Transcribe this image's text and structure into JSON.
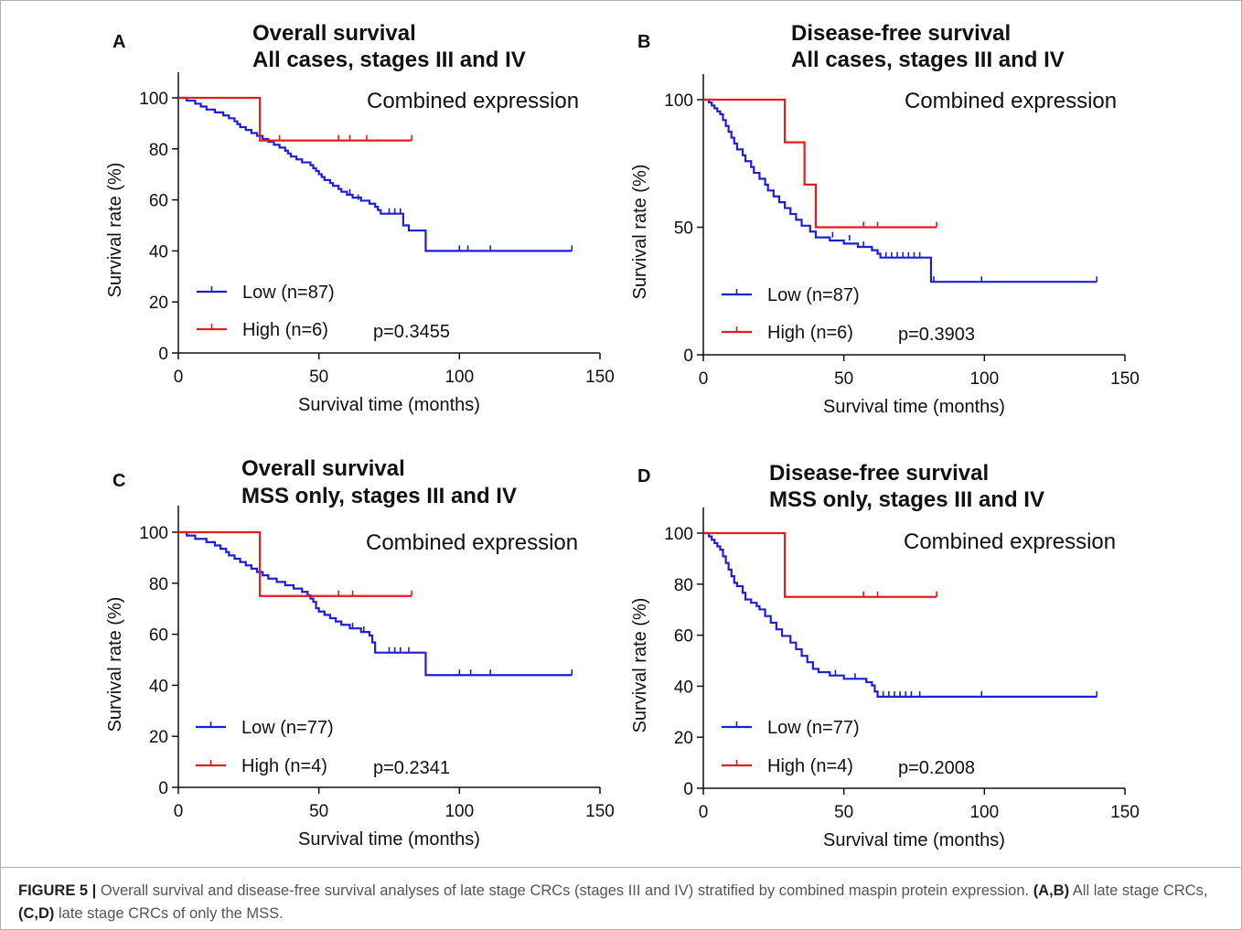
{
  "colors": {
    "low": "#1f1fd2",
    "high": "#e21d1d",
    "axis": "#111111"
  },
  "chart_data": [
    {
      "type": "line",
      "panel": "A",
      "title": "Overall survival",
      "subtitle": "All cases, stages III and IV",
      "annotation": "Combined expression",
      "xlabel": "Survival time (months)",
      "ylabel": "Survival rate (%)",
      "xlim": [
        0,
        150
      ],
      "ylim": [
        0,
        100
      ],
      "xticks": [
        0,
        50,
        100,
        150
      ],
      "yticks": [
        0,
        20,
        40,
        60,
        80,
        100
      ],
      "pvalue": "p=0.3455",
      "series": [
        {
          "name": "Low (n=87)",
          "color": "#1f1fd2",
          "steps": [
            [
              0,
              100
            ],
            [
              3,
              98.9
            ],
            [
              6,
              97.7
            ],
            [
              8,
              96.6
            ],
            [
              10,
              95.4
            ],
            [
              13,
              94.3
            ],
            [
              16,
              93.1
            ],
            [
              18,
              92
            ],
            [
              20,
              90.8
            ],
            [
              21,
              89.7
            ],
            [
              22,
              88.5
            ],
            [
              24,
              87.4
            ],
            [
              26,
              86.2
            ],
            [
              28,
              85.1
            ],
            [
              30,
              83.9
            ],
            [
              32,
              82.8
            ],
            [
              34,
              81.6
            ],
            [
              36,
              80.5
            ],
            [
              38,
              79.3
            ],
            [
              39,
              78.2
            ],
            [
              40,
              77
            ],
            [
              42,
              75.9
            ],
            [
              44,
              74.7
            ],
            [
              47,
              73.6
            ],
            [
              48,
              72.4
            ],
            [
              49,
              71.3
            ],
            [
              50,
              70.1
            ],
            [
              51,
              69
            ],
            [
              52,
              67.8
            ],
            [
              54,
              66.6
            ],
            [
              55,
              65.5
            ],
            [
              57,
              64.3
            ],
            [
              58,
              63.2
            ],
            [
              60,
              62
            ],
            [
              62,
              60.9
            ],
            [
              65,
              59.7
            ],
            [
              68,
              58.5
            ],
            [
              70,
              57.3
            ],
            [
              71,
              56
            ],
            [
              72,
              54.6
            ],
            [
              80,
              50
            ],
            [
              82,
              48
            ],
            [
              88,
              40
            ],
            [
              140,
              40
            ]
          ],
          "censors": [
            [
              61,
              62
            ],
            [
              64,
              60
            ],
            [
              75,
              54.6
            ],
            [
              77,
              54.6
            ],
            [
              79,
              54.6
            ],
            [
              100,
              40
            ],
            [
              103,
              40
            ],
            [
              111,
              40
            ],
            [
              140,
              40
            ]
          ]
        },
        {
          "name": "High (n=6)",
          "color": "#e21d1d",
          "steps": [
            [
              0,
              100
            ],
            [
              29,
              83.3
            ],
            [
              83,
              83.3
            ]
          ],
          "censors": [
            [
              36,
              83.3
            ],
            [
              57,
              83.3
            ],
            [
              61,
              83.3
            ],
            [
              67,
              83.3
            ],
            [
              83,
              83.3
            ]
          ]
        }
      ]
    },
    {
      "type": "line",
      "panel": "B",
      "title": "Disease-free survival",
      "subtitle": "All cases, stages III and IV",
      "annotation": "Combined expression",
      "xlabel": "Survival time (months)",
      "ylabel": "Survival rate (%)",
      "xlim": [
        0,
        150
      ],
      "ylim": [
        0,
        100
      ],
      "xticks": [
        0,
        50,
        100,
        150
      ],
      "yticks": [
        0,
        50,
        100
      ],
      "pvalue": "p=0.3903",
      "series": [
        {
          "name": "Low (n=87)",
          "color": "#1f1fd2",
          "steps": [
            [
              0,
              100
            ],
            [
              2,
              98.9
            ],
            [
              3,
              97.7
            ],
            [
              4,
              96.6
            ],
            [
              5,
              95.4
            ],
            [
              6,
              94.3
            ],
            [
              7,
              92
            ],
            [
              8,
              89.7
            ],
            [
              9,
              87.4
            ],
            [
              10,
              85.1
            ],
            [
              11,
              82.8
            ],
            [
              12,
              80.5
            ],
            [
              14,
              78.2
            ],
            [
              15,
              75.9
            ],
            [
              17,
              73.6
            ],
            [
              18,
              71.3
            ],
            [
              20,
              69
            ],
            [
              22,
              66.7
            ],
            [
              23,
              64.4
            ],
            [
              25,
              62.1
            ],
            [
              27,
              59.8
            ],
            [
              29,
              57.5
            ],
            [
              31,
              55.2
            ],
            [
              33,
              52.9
            ],
            [
              35,
              50.6
            ],
            [
              38,
              48.3
            ],
            [
              40,
              46
            ],
            [
              45,
              44.8
            ],
            [
              50,
              43.6
            ],
            [
              55,
              42.3
            ],
            [
              60,
              41
            ],
            [
              62,
              39.6
            ],
            [
              63,
              38.1
            ],
            [
              81,
              28.6
            ],
            [
              140,
              28.6
            ]
          ],
          "censors": [
            [
              46,
              46
            ],
            [
              52,
              44.8
            ],
            [
              57,
              42.3
            ],
            [
              65,
              38.1
            ],
            [
              67,
              38.1
            ],
            [
              69,
              38.1
            ],
            [
              71,
              38.1
            ],
            [
              73,
              38.1
            ],
            [
              75,
              38.1
            ],
            [
              77,
              38.1
            ],
            [
              82,
              28.6
            ],
            [
              99,
              28.6
            ],
            [
              140,
              28.6
            ]
          ]
        },
        {
          "name": "High (n=6)",
          "color": "#e21d1d",
          "steps": [
            [
              0,
              100
            ],
            [
              29,
              83.3
            ],
            [
              36,
              66.7
            ],
            [
              40,
              50
            ],
            [
              83,
              50
            ]
          ],
          "censors": [
            [
              57,
              50
            ],
            [
              62,
              50
            ],
            [
              83,
              50
            ]
          ]
        }
      ]
    },
    {
      "type": "line",
      "panel": "C",
      "title": "Overall survival",
      "subtitle": "MSS only, stages III and IV",
      "annotation": "Combined expression",
      "xlabel": "Survival time (months)",
      "ylabel": "Survival rate (%)",
      "xlim": [
        0,
        150
      ],
      "ylim": [
        0,
        100
      ],
      "xticks": [
        0,
        50,
        100,
        150
      ],
      "yticks": [
        0,
        20,
        40,
        60,
        80,
        100
      ],
      "pvalue": "p=0.2341",
      "series": [
        {
          "name": "Low (n=77)",
          "color": "#1f1fd2",
          "steps": [
            [
              0,
              100
            ],
            [
              3,
              98.7
            ],
            [
              6,
              97.4
            ],
            [
              10,
              96.1
            ],
            [
              13,
              94.8
            ],
            [
              15,
              93.5
            ],
            [
              17,
              92.2
            ],
            [
              18,
              90.9
            ],
            [
              20,
              89.6
            ],
            [
              22,
              88.3
            ],
            [
              24,
              87
            ],
            [
              26,
              85.7
            ],
            [
              28,
              84.4
            ],
            [
              30,
              83.1
            ],
            [
              32,
              81.8
            ],
            [
              35,
              80.5
            ],
            [
              38,
              79.2
            ],
            [
              41,
              77.9
            ],
            [
              44,
              76.6
            ],
            [
              46,
              75.3
            ],
            [
              47,
              74
            ],
            [
              48,
              72.7
            ],
            [
              49,
              70.2
            ],
            [
              50,
              68.9
            ],
            [
              52,
              67.6
            ],
            [
              54,
              66.3
            ],
            [
              56,
              65
            ],
            [
              58,
              63.7
            ],
            [
              61,
              62.3
            ],
            [
              65,
              60.9
            ],
            [
              68,
              59.5
            ],
            [
              69,
              56.8
            ],
            [
              70,
              52.8
            ],
            [
              88,
              44
            ],
            [
              140,
              44
            ]
          ],
          "censors": [
            [
              62,
              62.3
            ],
            [
              66,
              60.9
            ],
            [
              75,
              52.8
            ],
            [
              77,
              52.8
            ],
            [
              79,
              52.8
            ],
            [
              82,
              52.8
            ],
            [
              100,
              44
            ],
            [
              104,
              44
            ],
            [
              111,
              44
            ],
            [
              140,
              44
            ]
          ]
        },
        {
          "name": "High (n=4)",
          "color": "#e21d1d",
          "steps": [
            [
              0,
              100
            ],
            [
              29,
              75
            ],
            [
              83,
              75
            ]
          ],
          "censors": [
            [
              57,
              75
            ],
            [
              62,
              75
            ],
            [
              83,
              75
            ]
          ]
        }
      ]
    },
    {
      "type": "line",
      "panel": "D",
      "title": "Disease-free survival",
      "subtitle": "MSS only, stages III and IV",
      "annotation": "Combined expression",
      "xlabel": "Survival time (months)",
      "ylabel": "Survival rate (%)",
      "xlim": [
        0,
        150
      ],
      "ylim": [
        0,
        100
      ],
      "xticks": [
        0,
        50,
        100,
        150
      ],
      "yticks": [
        0,
        20,
        40,
        60,
        80,
        100
      ],
      "pvalue": "p=0.2008",
      "series": [
        {
          "name": "Low (n=77)",
          "color": "#1f1fd2",
          "steps": [
            [
              0,
              100
            ],
            [
              2,
              98.7
            ],
            [
              3,
              97.4
            ],
            [
              4,
              96.1
            ],
            [
              5,
              94.8
            ],
            [
              6,
              93.5
            ],
            [
              7,
              90.9
            ],
            [
              8,
              88.3
            ],
            [
              9,
              85.7
            ],
            [
              10,
              83.1
            ],
            [
              11,
              80.5
            ],
            [
              12,
              79.2
            ],
            [
              14,
              76.6
            ],
            [
              15,
              74
            ],
            [
              17,
              72.7
            ],
            [
              19,
              71.4
            ],
            [
              20,
              70.1
            ],
            [
              22,
              67.5
            ],
            [
              24,
              64.9
            ],
            [
              26,
              62.3
            ],
            [
              28,
              59.7
            ],
            [
              31,
              57.1
            ],
            [
              33,
              54.5
            ],
            [
              35,
              51.9
            ],
            [
              37,
              49.4
            ],
            [
              39,
              46.8
            ],
            [
              41,
              45.5
            ],
            [
              45,
              44.2
            ],
            [
              50,
              42.9
            ],
            [
              58,
              41.6
            ],
            [
              60,
              40.3
            ],
            [
              61,
              37.9
            ],
            [
              62,
              35.9
            ],
            [
              140,
              35.9
            ]
          ],
          "censors": [
            [
              47,
              44.2
            ],
            [
              54,
              42.9
            ],
            [
              64,
              35.9
            ],
            [
              66,
              35.9
            ],
            [
              68,
              35.9
            ],
            [
              70,
              35.9
            ],
            [
              72,
              35.9
            ],
            [
              74,
              35.9
            ],
            [
              77,
              35.9
            ],
            [
              99,
              35.9
            ],
            [
              140,
              35.9
            ]
          ]
        },
        {
          "name": "High (n=4)",
          "color": "#e21d1d",
          "steps": [
            [
              0,
              100
            ],
            [
              29,
              75
            ],
            [
              83,
              75
            ]
          ],
          "censors": [
            [
              57,
              75
            ],
            [
              62,
              75
            ],
            [
              83,
              75
            ]
          ]
        }
      ]
    }
  ],
  "caption": {
    "figure_label": "FIGURE 5 |",
    "text_1": " Overall survival and disease-free survival analyses of late stage CRCs (stages III and IV) stratified by combined maspin protein expression. ",
    "ref_ab": "(A,B)",
    "text_2": " All late stage CRCs, ",
    "ref_cd": "(C,D)",
    "text_3": " late stage CRCs of only the MSS."
  }
}
